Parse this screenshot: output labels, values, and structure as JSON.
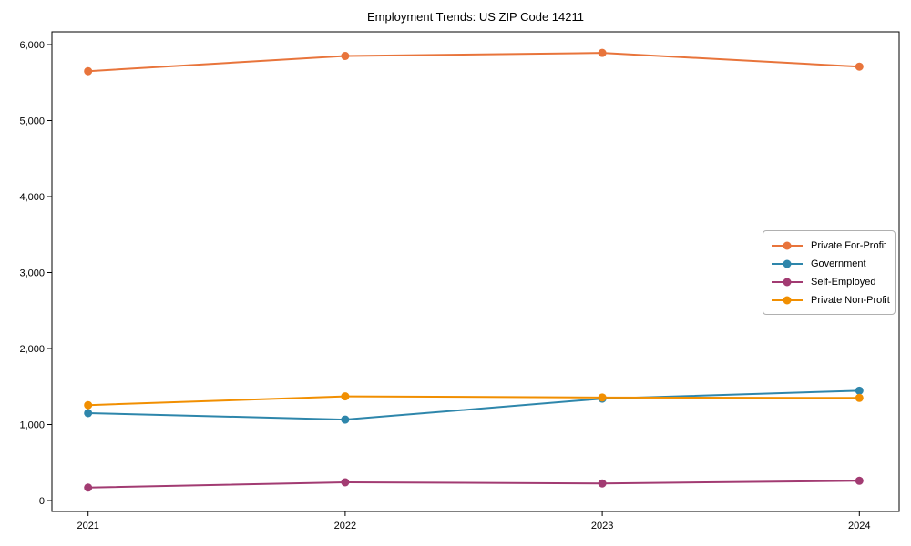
{
  "chart_data": {
    "type": "line",
    "title": "Employment Trends: US ZIP Code 14211",
    "x": [
      2021,
      2022,
      2023,
      2024
    ],
    "x_tick_labels": [
      "2021",
      "2022",
      "2023",
      "2024"
    ],
    "y_ticks": [
      0,
      1000,
      2000,
      3000,
      4000,
      5000,
      6000
    ],
    "y_tick_labels": [
      "0",
      "1,000",
      "2,000",
      "3,000",
      "4,000",
      "5,000",
      "6,000"
    ],
    "ylim": [
      -150,
      6180
    ],
    "grid": false,
    "legend_position": "center-right",
    "series": [
      {
        "name": "Private For-Profit",
        "color": "#E8743B",
        "values": [
          5650,
          5850,
          5890,
          5710
        ]
      },
      {
        "name": "Government",
        "color": "#2E86AB",
        "values": [
          1150,
          1065,
          1340,
          1445
        ]
      },
      {
        "name": "Self-Employed",
        "color": "#A23B72",
        "values": [
          170,
          240,
          225,
          260
        ]
      },
      {
        "name": "Private Non-Profit",
        "color": "#F18F01",
        "values": [
          1255,
          1370,
          1355,
          1350
        ]
      }
    ]
  }
}
